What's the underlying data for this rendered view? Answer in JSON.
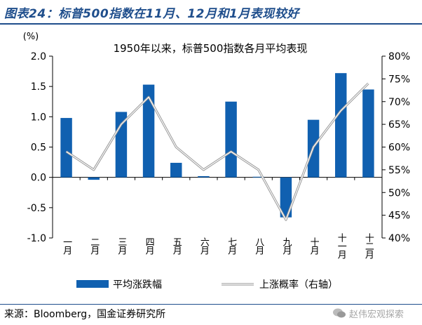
{
  "header": {
    "title": "图表24：标普500指数在11月、12月和1月表现较好"
  },
  "footer": {
    "source": "来源：Bloomberg，国金证券研究所",
    "watermark": "赵伟宏观探索"
  },
  "chart_data": {
    "type": "bar",
    "title": "1950年以来，标普500指数各月平均表现",
    "categories": [
      "一月",
      "二月",
      "三月",
      "四月",
      "五月",
      "六月",
      "七月",
      "八月",
      "九月",
      "十月",
      "十一月",
      "十二月"
    ],
    "series": [
      {
        "name": "平均涨跌幅",
        "type": "bar",
        "axis": "left",
        "color": "#1060b0",
        "values": [
          0.98,
          -0.04,
          1.08,
          1.53,
          0.24,
          0.02,
          1.25,
          0.01,
          -0.66,
          0.95,
          1.72,
          1.45
        ]
      },
      {
        "name": "上涨概率（右轴）",
        "type": "line",
        "axis": "right",
        "color": "#c8c8c8",
        "values": [
          59,
          55,
          65,
          71,
          60,
          55,
          59,
          55,
          44,
          60,
          68,
          74
        ]
      }
    ],
    "ylabel_left": "(%)",
    "ylim_left": [
      -1.0,
      2.0
    ],
    "yticks_left": [
      "-1.0",
      "-0.5",
      "0.0",
      "0.5",
      "1.0",
      "1.5",
      "2.0"
    ],
    "yticks_left_values": [
      -1.0,
      -0.5,
      0.0,
      0.5,
      1.0,
      1.5,
      2.0
    ],
    "ylim_right": [
      40,
      80
    ],
    "yticks_right": [
      "40%",
      "45%",
      "50%",
      "55%",
      "60%",
      "65%",
      "70%",
      "75%",
      "80%"
    ],
    "yticks_right_values": [
      40,
      45,
      50,
      55,
      60,
      65,
      70,
      75,
      80
    ],
    "legend_placement": "bottom",
    "grid": false
  }
}
